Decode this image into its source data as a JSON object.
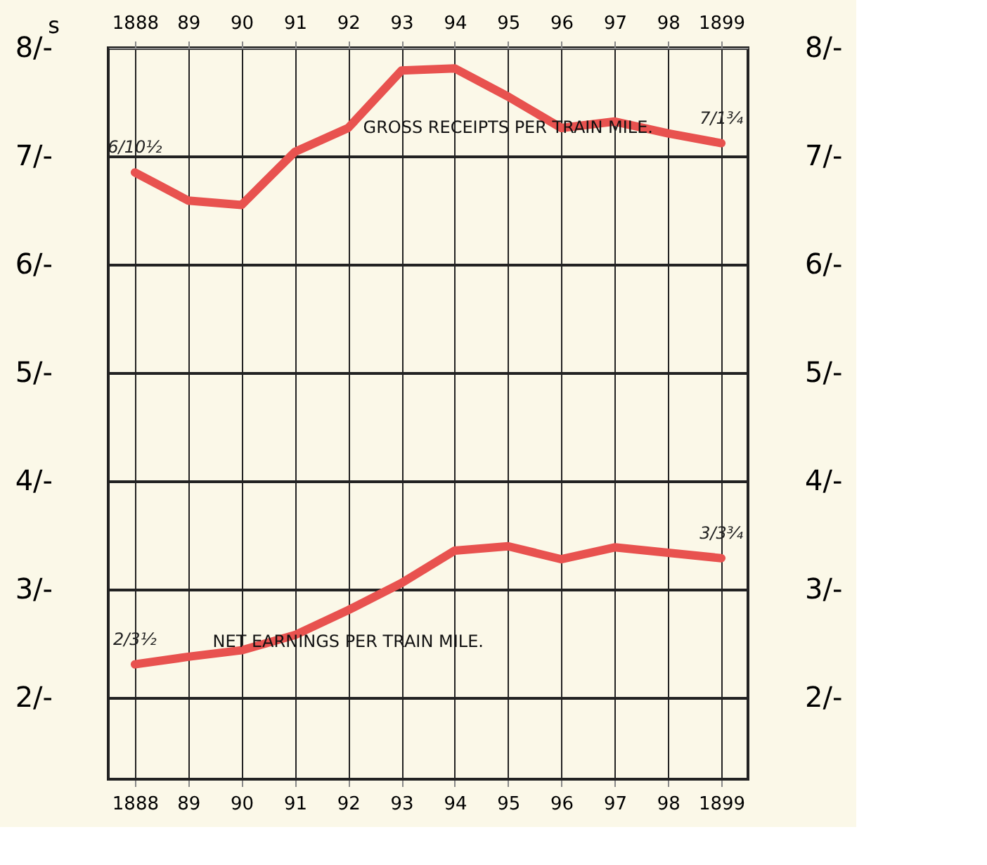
{
  "chart_data": {
    "type": "line",
    "ylabel": "s",
    "categories": [
      "1888",
      "89",
      "90",
      "91",
      "92",
      "93",
      "94",
      "95",
      "96",
      "97",
      "98",
      "1899"
    ],
    "series": [
      {
        "name": "GROSS RECEIPTS PER TRAIN MILE.",
        "color": "#e8524f",
        "values": [
          6.85,
          6.59,
          6.55,
          7.04,
          7.26,
          7.79,
          7.81,
          7.55,
          7.26,
          7.32,
          7.21,
          7.12
        ],
        "value_labels": [
          "6/10½",
          null,
          null,
          null,
          null,
          null,
          null,
          null,
          null,
          null,
          null,
          "7/1¾"
        ]
      },
      {
        "name": "NET EARNINGS PER TRAIN MILE.",
        "color": "#e8524f",
        "values": [
          2.31,
          2.38,
          2.44,
          2.58,
          2.81,
          3.06,
          3.36,
          3.4,
          3.28,
          3.39,
          3.34,
          3.29
        ],
        "value_labels": [
          "2/3½",
          null,
          null,
          null,
          null,
          null,
          null,
          null,
          null,
          null,
          null,
          "3/3¾"
        ]
      }
    ],
    "ylim": [
      1.25,
      8
    ],
    "yticks": [
      {
        "value": 2,
        "label": "2/-"
      },
      {
        "value": 3,
        "label": "3/-"
      },
      {
        "value": 4,
        "label": "4/-"
      },
      {
        "value": 5,
        "label": "5/-"
      },
      {
        "value": 6,
        "label": "6/-"
      },
      {
        "value": 7,
        "label": "7/-"
      },
      {
        "value": 8,
        "label": "8/-"
      }
    ],
    "y2lim": [
      1.25,
      8
    ],
    "y2ticks": [
      {
        "value": 2,
        "label": "2/-"
      },
      {
        "value": 3,
        "label": "3/-"
      },
      {
        "value": 4,
        "label": "4/-"
      },
      {
        "value": 5,
        "label": "5/-"
      },
      {
        "value": 6,
        "label": "6/-"
      },
      {
        "value": 7,
        "label": "7/-"
      },
      {
        "value": 8,
        "label": "8/-"
      }
    ],
    "grid": true,
    "marker": "none",
    "line_style": "solid"
  }
}
